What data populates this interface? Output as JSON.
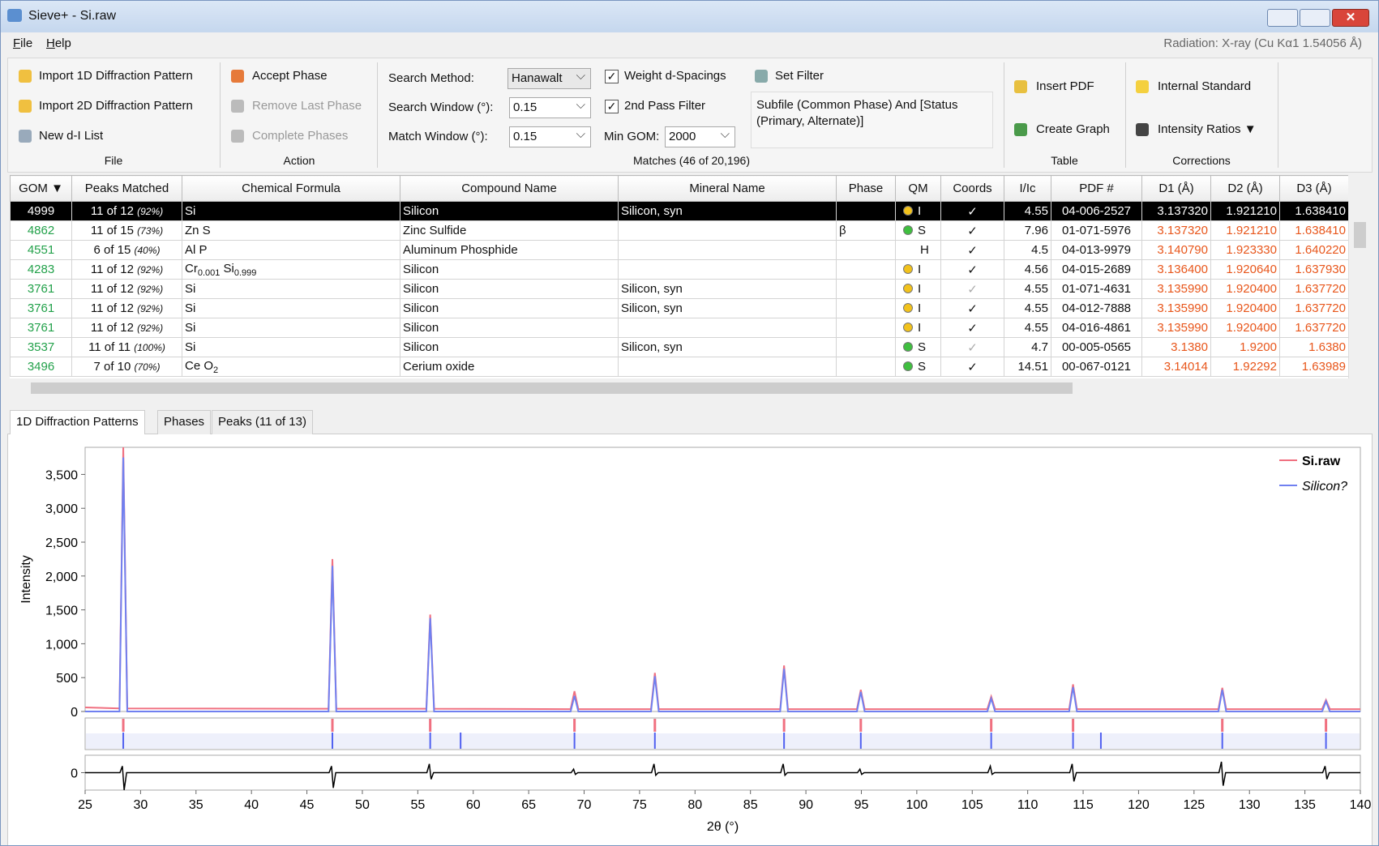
{
  "window": {
    "title": "Sieve+ - Si.raw"
  },
  "menu": [
    "File",
    "Help"
  ],
  "radiation": "Radiation: X-ray (Cu Kα1 1.54056 Å)",
  "toolbar": {
    "file": {
      "items": [
        "Import 1D Diffraction Pattern",
        "Import 2D Diffraction Pattern",
        "New d-I List"
      ],
      "label": "File"
    },
    "action": {
      "items": [
        "Accept Phase",
        "Remove Last Phase",
        "Complete Phases"
      ],
      "label": "Action"
    },
    "search": {
      "method_label": "Search Method:",
      "method": "Hanawalt",
      "window_label": "Search Window (°):",
      "window": "0.15",
      "match_label": "Match Window (°):",
      "match": "0.15"
    },
    "matches": {
      "weight": "Weight d-Spacings",
      "second_pass": "2nd Pass Filter",
      "min_gom_label": "Min GOM:",
      "min_gom": "2000",
      "set_filter": "Set Filter",
      "filter_text": "Subfile (Common Phase) And [Status (Primary, Alternate)]",
      "label": "Matches (46 of 20,196)"
    },
    "table": {
      "items": [
        "Insert PDF",
        "Create Graph"
      ],
      "label": "Table"
    },
    "corrections": {
      "items": [
        "Internal Standard",
        "Intensity Ratios ▼"
      ],
      "label": "Corrections"
    }
  },
  "table": {
    "headers": [
      "GOM ▼",
      "Peaks Matched",
      "Chemical Formula",
      "Compound Name",
      "Mineral Name",
      "Phase",
      "QM",
      "Coords",
      "I/Ic",
      "PDF #",
      "D1 (Å)",
      "D2 (Å)",
      "D3 (Å)"
    ],
    "rows": [
      {
        "gom": "4999",
        "peaks": "11 of 12",
        "pct": "(92%)",
        "formula": [
          {
            "t": "Si"
          }
        ],
        "compound": "Silicon",
        "mineral": "Silicon, syn",
        "qm_color": "#f2c21b",
        "qm": "I",
        "coords": "✓",
        "iic": "4.55",
        "pdf": "04-006-2527",
        "d1": "3.137320",
        "d2": "1.921210",
        "d3": "1.638410",
        "selected": true
      },
      {
        "gom": "4862",
        "peaks": "11 of 15",
        "pct": "(73%)",
        "formula": [
          {
            "t": "Zn S"
          }
        ],
        "compound": "Zinc Sulfide",
        "phase": "β",
        "qm_color": "#3fbf3f",
        "qm": "S",
        "coords": "✓",
        "iic": "7.96",
        "pdf": "01-071-5976",
        "d1": "3.137320",
        "d2": "1.921210",
        "d3": "1.638410"
      },
      {
        "gom": "4551",
        "peaks": "6 of 15",
        "pct": "(40%)",
        "formula": [
          {
            "t": "Al P"
          }
        ],
        "compound": "Aluminum Phosphide",
        "qm": "H",
        "coords": "✓",
        "iic": "4.5",
        "pdf": "04-013-9979",
        "d1": "3.140790",
        "d2": "1.923330",
        "d3": "1.640220"
      },
      {
        "gom": "4283",
        "peaks": "11 of 12",
        "pct": "(92%)",
        "formula": [
          {
            "t": "Cr",
            "sub": "0.001"
          },
          {
            "t": " Si",
            "sub": "0.999"
          }
        ],
        "compound": "Silicon",
        "qm_color": "#f2c21b",
        "qm": "I",
        "coords": "✓",
        "iic": "4.56",
        "pdf": "04-015-2689",
        "d1": "3.136400",
        "d2": "1.920640",
        "d3": "1.637930"
      },
      {
        "gom": "3761",
        "peaks": "11 of 12",
        "pct": "(92%)",
        "formula": [
          {
            "t": "Si"
          }
        ],
        "compound": "Silicon",
        "mineral": "Silicon, syn",
        "qm_color": "#f2c21b",
        "qm": "I",
        "coords": "✓",
        "coords_dim": true,
        "iic": "4.55",
        "pdf": "01-071-4631",
        "d1": "3.135990",
        "d2": "1.920400",
        "d3": "1.637720"
      },
      {
        "gom": "3761",
        "peaks": "11 of 12",
        "pct": "(92%)",
        "formula": [
          {
            "t": "Si"
          }
        ],
        "compound": "Silicon",
        "mineral": "Silicon, syn",
        "qm_color": "#f2c21b",
        "qm": "I",
        "coords": "✓",
        "iic": "4.55",
        "pdf": "04-012-7888",
        "d1": "3.135990",
        "d2": "1.920400",
        "d3": "1.637720"
      },
      {
        "gom": "3761",
        "peaks": "11 of 12",
        "pct": "(92%)",
        "formula": [
          {
            "t": "Si"
          }
        ],
        "compound": "Silicon",
        "qm_color": "#f2c21b",
        "qm": "I",
        "coords": "✓",
        "iic": "4.55",
        "pdf": "04-016-4861",
        "d1": "3.135990",
        "d2": "1.920400",
        "d3": "1.637720"
      },
      {
        "gom": "3537",
        "peaks": "11 of 11",
        "pct": "(100%)",
        "formula": [
          {
            "t": "Si"
          }
        ],
        "compound": "Silicon",
        "mineral": "Silicon, syn",
        "qm_color": "#3fbf3f",
        "qm": "S",
        "coords": "✓",
        "coords_dim": true,
        "iic": "4.7",
        "pdf": "00-005-0565",
        "d1": "3.1380",
        "d2": "1.9200",
        "d3": "1.6380"
      },
      {
        "gom": "3496",
        "peaks": "7 of 10",
        "pct": "(70%)",
        "formula": [
          {
            "t": "Ce O",
            "sub": "2"
          }
        ],
        "compound": "Cerium oxide",
        "qm_color": "#3fbf3f",
        "qm": "S",
        "coords": "✓",
        "iic": "14.51",
        "pdf": "00-067-0121",
        "d1": "3.14014",
        "d2": "1.92292",
        "d3": "1.63989"
      }
    ]
  },
  "tabs": [
    "1D Diffraction Patterns",
    "Phases",
    "Peaks (11 of 13)"
  ],
  "chart_data": {
    "type": "line",
    "ylabel": "Intensity",
    "xlabel": "2θ (°)",
    "xlim": [
      25,
      140
    ],
    "ylim": [
      0,
      3900
    ],
    "xticks": [
      25,
      30,
      35,
      40,
      45,
      50,
      55,
      60,
      65,
      70,
      75,
      80,
      85,
      90,
      95,
      100,
      105,
      110,
      115,
      120,
      125,
      130,
      135,
      140
    ],
    "yticks": [
      0,
      500,
      {
        "value": 1000,
        "label": "1,000"
      },
      {
        "value": 1500,
        "label": "1,500"
      },
      {
        "value": 2000,
        "label": "2,000"
      },
      {
        "value": 2500,
        "label": "2,500"
      },
      {
        "value": 3000,
        "label": "3,000"
      },
      {
        "value": 3500,
        "label": "3,500"
      }
    ],
    "legend": "upper right",
    "series": [
      {
        "name": "Si.raw",
        "color": "#f07080",
        "x": [
          25,
          28.1,
          28.44,
          28.8,
          46.95,
          47.3,
          47.65,
          55.77,
          56.12,
          56.47,
          68.78,
          69.13,
          69.48,
          76.03,
          76.38,
          76.73,
          87.68,
          88.03,
          88.38,
          94.6,
          94.95,
          95.3,
          106.36,
          106.71,
          107.06,
          113.74,
          114.09,
          114.44,
          127.2,
          127.55,
          127.9,
          136.55,
          136.9,
          137.25,
          140
        ],
        "values": [
          60,
          45,
          3900,
          45,
          40,
          2250,
          40,
          40,
          1430,
          40,
          35,
          300,
          35,
          35,
          570,
          35,
          35,
          680,
          35,
          35,
          320,
          35,
          35,
          220,
          35,
          35,
          400,
          35,
          35,
          350,
          35,
          35,
          170,
          35,
          35
        ]
      },
      {
        "name": "Silicon?",
        "color": "#7080f0",
        "x": [
          25,
          28.1,
          28.44,
          28.8,
          46.95,
          47.3,
          47.65,
          55.77,
          56.12,
          56.47,
          68.78,
          69.13,
          69.48,
          76.03,
          76.38,
          76.73,
          87.68,
          88.03,
          88.38,
          94.6,
          94.95,
          95.3,
          106.36,
          106.71,
          107.06,
          113.74,
          114.09,
          114.44,
          127.2,
          127.55,
          127.9,
          136.55,
          136.9,
          137.25,
          140
        ],
        "values": [
          0,
          0,
          3750,
          0,
          0,
          2150,
          0,
          0,
          1380,
          0,
          0,
          230,
          0,
          0,
          520,
          0,
          0,
          630,
          0,
          0,
          290,
          0,
          0,
          190,
          0,
          0,
          360,
          0,
          0,
          320,
          0,
          0,
          150,
          0,
          0
        ]
      }
    ],
    "sticks": {
      "observed": [
        28.44,
        47.3,
        56.12,
        69.13,
        76.38,
        88.03,
        94.95,
        106.71,
        114.09,
        127.55,
        136.9
      ],
      "observed_color": "#f07080",
      "reference": [
        28.44,
        47.3,
        56.12,
        58.86,
        69.13,
        76.38,
        88.03,
        94.95,
        106.71,
        114.09,
        116.6,
        127.55,
        136.9
      ],
      "reference_color": "#5060f0"
    },
    "difference": {
      "ylim": [
        -400,
        400
      ],
      "yticks": [
        0
      ],
      "color": "#000000",
      "x": [
        25,
        28.14,
        28.36,
        28.52,
        28.74,
        47.0,
        47.22,
        47.38,
        47.6,
        55.82,
        56.04,
        56.2,
        56.42,
        68.83,
        69.05,
        69.21,
        69.43,
        76.08,
        76.3,
        76.46,
        76.68,
        87.73,
        87.95,
        88.11,
        88.33,
        94.65,
        94.87,
        95.03,
        95.25,
        106.41,
        106.63,
        106.79,
        107.01,
        113.79,
        114.01,
        114.17,
        114.39,
        127.25,
        127.47,
        127.63,
        127.85,
        136.6,
        136.82,
        136.98,
        137.2,
        140
      ],
      "values": [
        0,
        0,
        150,
        -400,
        0,
        0,
        150,
        -350,
        0,
        0,
        200,
        -150,
        0,
        0,
        80,
        -40,
        0,
        0,
        200,
        -60,
        0,
        0,
        200,
        -60,
        0,
        0,
        80,
        -40,
        0,
        0,
        150,
        -40,
        0,
        0,
        200,
        -200,
        0,
        0,
        250,
        -300,
        0,
        0,
        150,
        -150,
        0,
        0
      ]
    }
  }
}
